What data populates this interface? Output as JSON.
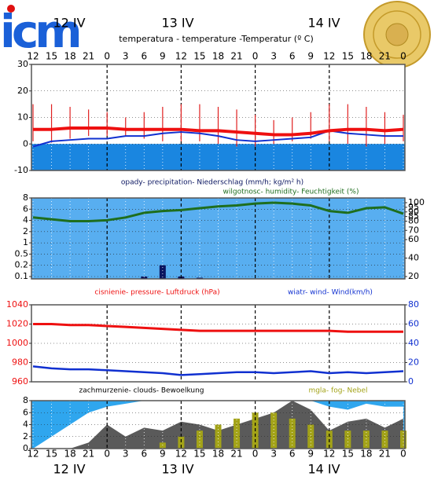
{
  "header": {
    "logo": "icm"
  },
  "chart_data": [
    {
      "type": "line",
      "title": "temperatura - temperature -Temperatur (º C)",
      "days": [
        "12 IV",
        "13 IV",
        "14 IV"
      ],
      "categories": [
        "12",
        "15",
        "18",
        "21",
        "0",
        "3",
        "6",
        "9",
        "12",
        "15",
        "18",
        "21",
        "0",
        "3",
        "6",
        "9",
        "12",
        "15",
        "18",
        "21",
        "0"
      ],
      "ylim": [
        -10,
        30
      ],
      "yticks": [
        -10,
        0,
        10,
        20,
        30
      ],
      "grid": true,
      "background": "#ffffff",
      "below_zero_color": "#1a86e0",
      "series": [
        {
          "type": "range",
          "color": "#e02020",
          "values": [
            15,
            15,
            14,
            13,
            12,
            10,
            12,
            14,
            15,
            15,
            14,
            13,
            11,
            9,
            10,
            12,
            15,
            15,
            14,
            12,
            11
          ],
          "low": [
            1,
            0.5,
            2,
            3,
            3,
            3,
            2,
            1,
            1,
            1,
            0,
            -1,
            -1,
            0,
            1,
            2,
            1,
            0,
            -1,
            0,
            1
          ]
        },
        {
          "type": "line",
          "color": "#1030d0",
          "width": 2,
          "values": [
            -1,
            1,
            1.5,
            2,
            2,
            3,
            3,
            4,
            4.5,
            4,
            3,
            1.5,
            1,
            1.5,
            2,
            2.5,
            5,
            4,
            3.5,
            3,
            3
          ]
        },
        {
          "type": "line",
          "color": "#ee1010",
          "width": 4,
          "values": [
            5.5,
            5.5,
            6,
            6,
            6,
            5.5,
            5.5,
            5.5,
            5.5,
            5,
            5,
            4.5,
            4,
            3.5,
            3.5,
            4,
            5,
            5.5,
            5.5,
            5,
            5.5
          ]
        }
      ]
    },
    {
      "type": "combo",
      "ylim": [
        0,
        8
      ],
      "yticks": [
        0.1,
        0.2,
        0.5,
        1,
        2,
        4,
        6,
        8
      ],
      "yscale": "piecewise",
      "y2lim": [
        20,
        100
      ],
      "y2ticks": [
        20,
        40,
        60,
        70,
        80,
        85,
        90,
        95,
        100
      ],
      "grid": true,
      "background": "#58aef0",
      "series": [
        {
          "type": "bar",
          "name": "opady- precipitation- Niederschlag (mm/h; kg/m² h)",
          "color": "#0a1560",
          "values": [
            0,
            0,
            0,
            0,
            0,
            0.02,
            0.1,
            0.2,
            0.1,
            0.05,
            0,
            0,
            0,
            0,
            0,
            0,
            0,
            0,
            0,
            0,
            0
          ]
        },
        {
          "type": "line",
          "name": "wilgotnosc- humidity- Feuchtigkeit (%)",
          "color": "#1e6e1e",
          "width": 3,
          "axis": "y2",
          "values": [
            84,
            82,
            80,
            80,
            81,
            84,
            89,
            91,
            92,
            94,
            96,
            97,
            99,
            100,
            99,
            97,
            91,
            89,
            94,
            95,
            88
          ]
        }
      ]
    },
    {
      "type": "line",
      "ylim": [
        960,
        1040
      ],
      "yticks": [
        960,
        980,
        1000,
        1020,
        1040
      ],
      "y2lim": [
        0,
        80
      ],
      "y2ticks": [
        0,
        20,
        40,
        60,
        80
      ],
      "grid": true,
      "background": "#ffffff",
      "series": [
        {
          "type": "line",
          "name": "cisnienie- pressure- Luftdruck (hPa)",
          "color": "#ee1010",
          "width": 3,
          "values": [
            1020,
            1020,
            1019,
            1019,
            1018,
            1017,
            1016,
            1015,
            1014,
            1013,
            1013,
            1013,
            1013,
            1013,
            1013,
            1013,
            1013,
            1012,
            1012,
            1012,
            1012
          ]
        },
        {
          "type": "line",
          "name": "wiatr- wind- Wind(km/h)",
          "color": "#1030d0",
          "width": 2.5,
          "axis": "y2",
          "values": [
            16,
            14,
            13,
            13,
            12,
            11,
            10,
            9,
            7,
            8,
            9,
            10,
            10,
            9,
            10,
            11,
            9,
            10,
            9,
            10,
            11
          ]
        }
      ]
    },
    {
      "type": "area",
      "title": "zachmurzenie- clouds- Bewoelkung",
      "days": [
        "12 IV",
        "13 IV",
        "14 IV"
      ],
      "categories": [
        "12",
        "15",
        "18",
        "21",
        "0",
        "3",
        "6",
        "9",
        "12",
        "15",
        "18",
        "21",
        "0",
        "3",
        "6",
        "9",
        "12",
        "15",
        "18",
        "21",
        "0"
      ],
      "ylim": [
        0,
        8
      ],
      "yticks": [
        0,
        2,
        4,
        6,
        8
      ],
      "grid": true,
      "background": "#2fa6ee",
      "series": [
        {
          "type": "area",
          "color": "#ffffff",
          "values": [
            0,
            2,
            4,
            6,
            7,
            7.5,
            8,
            8,
            8,
            8,
            8,
            8,
            8,
            8,
            8,
            8,
            7,
            6.5,
            7.5,
            7,
            7
          ]
        },
        {
          "type": "area",
          "color": "#5a5a5a",
          "values": [
            0,
            0,
            0,
            1,
            4,
            2,
            3.5,
            3,
            4.5,
            4,
            3,
            4,
            5,
            6,
            8,
            6.5,
            3,
            4.5,
            5,
            3.5,
            5
          ]
        },
        {
          "type": "bar",
          "name": "mgla- fog- Nebel",
          "color": "#a3a318",
          "values": [
            0,
            0,
            0,
            0,
            0,
            0,
            0,
            1,
            2,
            3,
            4,
            5,
            6,
            6,
            5,
            4,
            3,
            3,
            3,
            3,
            3
          ]
        }
      ]
    }
  ]
}
